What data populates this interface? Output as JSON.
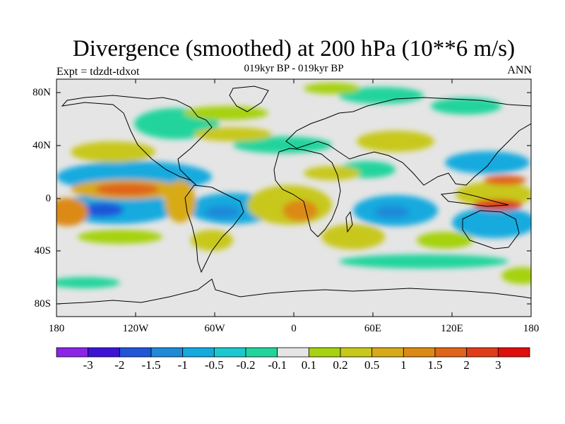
{
  "figure": {
    "title": "Divergence (smoothed) at 200 hPa (10**6 m/s)",
    "subtitle": "019kyr BP - 019kyr BP",
    "left_label": "Expt = tdzdt-tdxot",
    "right_label": "ANN"
  },
  "axes": {
    "lat_labels": [
      "80N",
      "40N",
      "0",
      "40S",
      "80S"
    ],
    "lon_labels": [
      "180",
      "120W",
      "60W",
      "0",
      "60E",
      "120E",
      "180"
    ]
  },
  "colorbar": {
    "labels": [
      "-3",
      "-2",
      "-1.5",
      "-1",
      "-0.5",
      "-0.2",
      "-0.1",
      "0.1",
      "0.2",
      "0.5",
      "1",
      "1.5",
      "2",
      "3"
    ],
    "colors": [
      "#8b24e6",
      "#3c14d6",
      "#1f55d8",
      "#1f8ad8",
      "#12aadf",
      "#1ac9d0",
      "#22d49c",
      "#e5e5e5",
      "#a6d211",
      "#c8c81a",
      "#d8aa18",
      "#dc8a14",
      "#e0641a",
      "#e03c18",
      "#e00d0d"
    ]
  }
}
